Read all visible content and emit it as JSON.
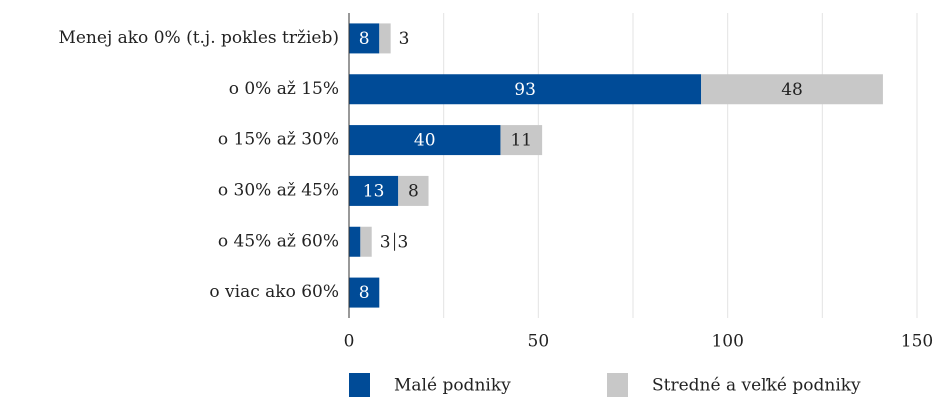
{
  "chart_data": {
    "type": "stacked_barh",
    "categories": [
      "Menej ako 0% (t.j. pokles tržieb)",
      "o 0% až 15%",
      "o 15% až 30%",
      "o 30% až 45%",
      "o 45% až 60%",
      "o viac ako 60%"
    ],
    "series": [
      {
        "name": "Malé podniky",
        "color": "#004b97",
        "values": [
          8,
          93,
          40,
          13,
          3,
          8
        ]
      },
      {
        "name": "Stredné a veľké podniky",
        "color": "#c8c8c8",
        "values": [
          3,
          48,
          11,
          8,
          3,
          null
        ]
      }
    ],
    "xlim": [
      0,
      150
    ],
    "xticks": [
      0,
      50,
      100,
      150
    ],
    "minor_xticks": [
      25,
      75,
      125
    ],
    "grid": true,
    "legend": "bottom"
  }
}
